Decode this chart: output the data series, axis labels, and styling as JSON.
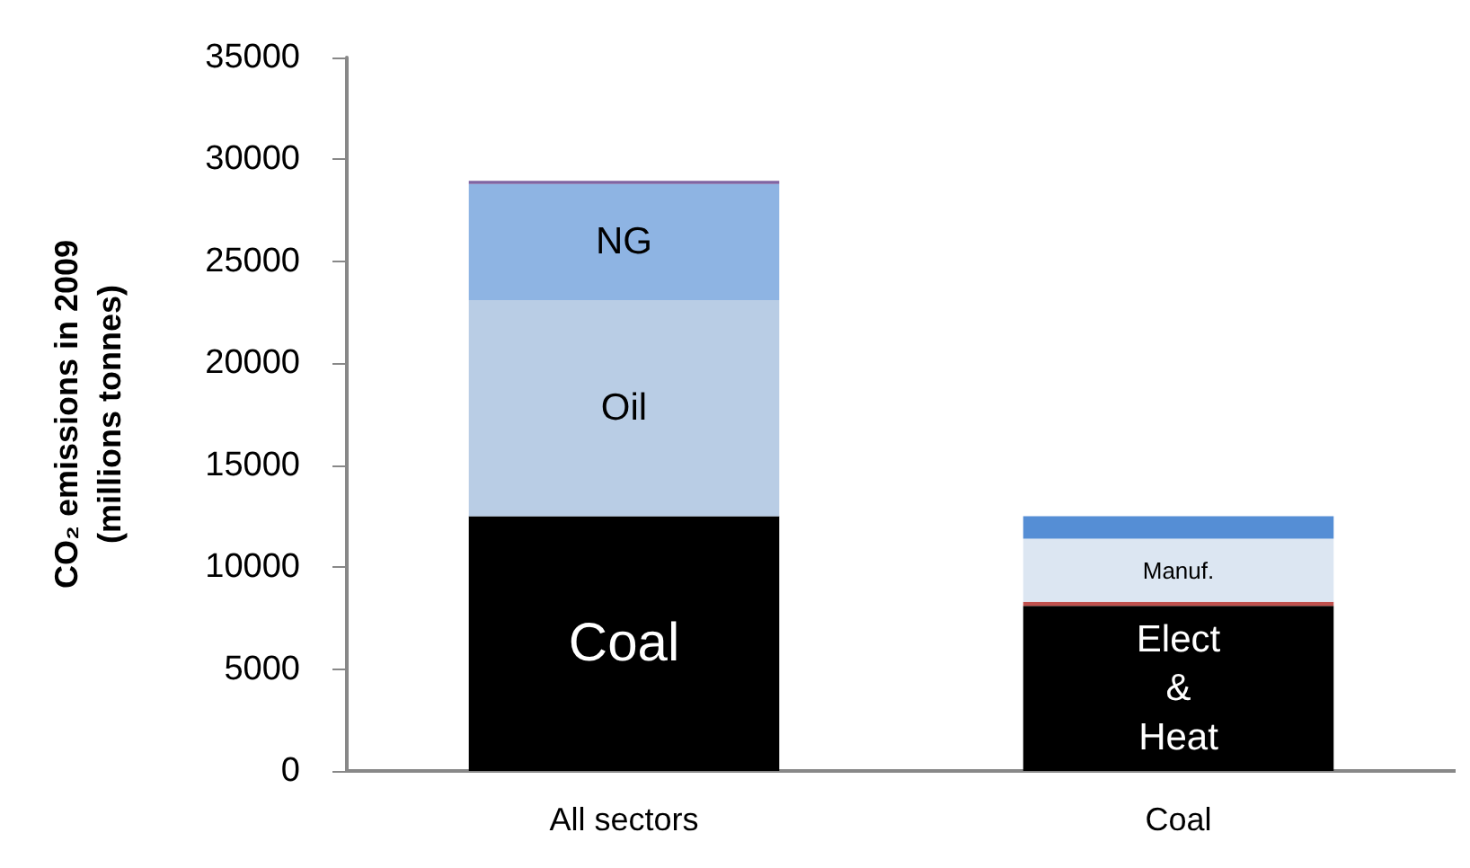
{
  "chart_data": {
    "type": "bar",
    "stacked": true,
    "ylabel": "CO₂ emissions in 2009\n(millions tonnes)",
    "categories": [
      "All sectors",
      "Coal"
    ],
    "ylim": [
      0,
      35000
    ],
    "yticks": [
      0,
      5000,
      10000,
      15000,
      20000,
      25000,
      30000,
      35000
    ],
    "grid": false,
    "legend": false,
    "series": [
      {
        "name": "Coal",
        "color": "#000000",
        "values": [
          12500,
          null
        ]
      },
      {
        "name": "Oil",
        "color": "#b9cde5",
        "values": [
          10600,
          null
        ]
      },
      {
        "name": "NG",
        "color": "#8eb4e3",
        "values": [
          5700,
          null
        ]
      },
      {
        "color": "#8064a2",
        "values": [
          150,
          null
        ]
      },
      {
        "name": "Elect\n&\nHeat",
        "color": "#000000",
        "values": [
          null,
          8100
        ]
      },
      {
        "color": "#c0504d",
        "values": [
          null,
          200
        ]
      },
      {
        "name": "Manuf.",
        "color": "#dce6f2",
        "values": [
          null,
          3100
        ]
      },
      {
        "color": "#558ed5",
        "values": [
          null,
          1100
        ]
      }
    ]
  }
}
